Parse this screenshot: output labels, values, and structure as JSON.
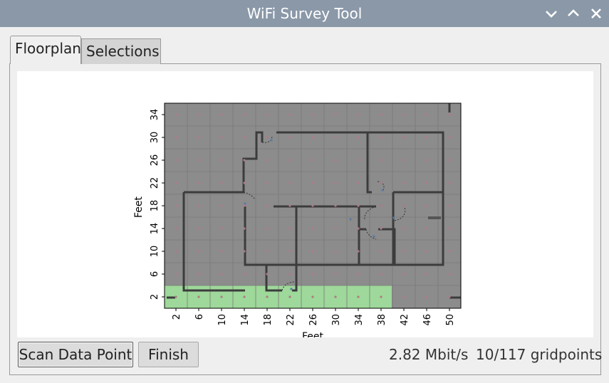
{
  "window": {
    "title": "WiFi Survey Tool",
    "controls": [
      "chevron-down-icon",
      "chevron-up-icon",
      "close-icon"
    ]
  },
  "tabs": [
    {
      "label": "Floorplan",
      "active": true
    },
    {
      "label": "Selections",
      "active": false
    }
  ],
  "plot": {
    "xlabel": "Feet",
    "ylabel": "Feet",
    "xticks": [
      "2",
      "6",
      "10",
      "14",
      "18",
      "22",
      "26",
      "30",
      "34",
      "38",
      "42",
      "46",
      "50"
    ],
    "yticks": [
      "2",
      "6",
      "10",
      "14",
      "18",
      "22",
      "26",
      "30",
      "34"
    ],
    "colors": {
      "background": "#8c8c8c",
      "scanned": "#9ed89a",
      "wall": "#3c3c3c",
      "point": "#b07a86"
    }
  },
  "buttons": {
    "scan": "Scan Data Point",
    "finish": "Finish"
  },
  "status": {
    "rate": "2.82 Mbit/s",
    "progress": "10/117 gridpoints"
  }
}
